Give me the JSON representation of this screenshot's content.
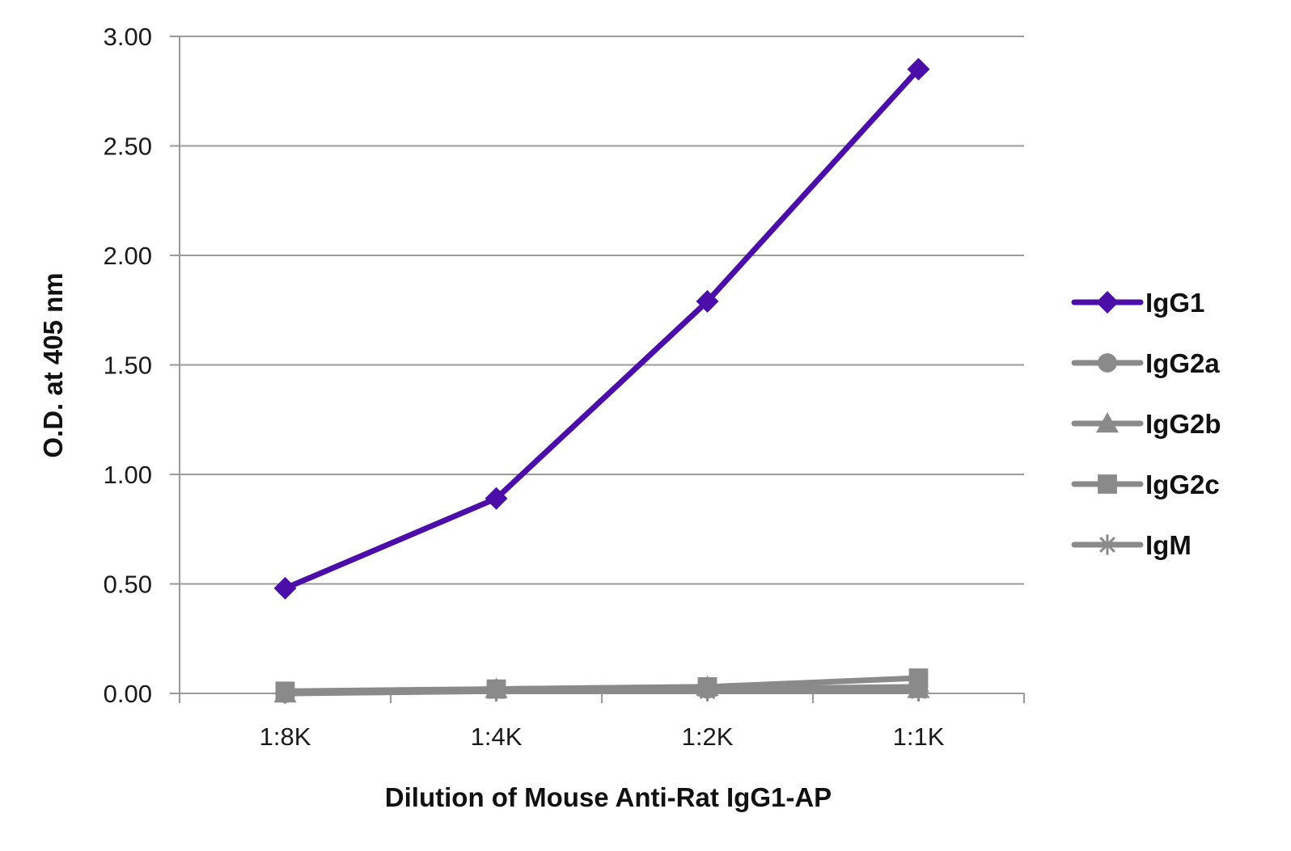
{
  "chart_data": {
    "type": "line",
    "title": "",
    "xlabel": "Dilution of Mouse Anti-Rat IgG1-AP",
    "ylabel": "O.D. at 405 nm",
    "categories": [
      "1:8K",
      "1:4K",
      "1:2K",
      "1:1K"
    ],
    "ylim": [
      0,
      3
    ],
    "yticks": [
      0,
      0.5,
      1,
      1.5,
      2,
      2.5,
      3
    ],
    "ytick_labels": [
      "0.00",
      "0.50",
      "1.00",
      "1.50",
      "2.00",
      "2.50",
      "3.00"
    ],
    "grid": "horizontal",
    "legend_position": "right",
    "series": [
      {
        "name": "IgG1",
        "values": [
          0.48,
          0.89,
          1.79,
          2.85
        ],
        "color": "#4b0ea8",
        "marker": "diamond"
      },
      {
        "name": "IgG2a",
        "values": [
          0.0,
          0.02,
          0.02,
          0.03
        ],
        "color": "#8a8a8a",
        "marker": "circle"
      },
      {
        "name": "IgG2b",
        "values": [
          0.0,
          0.02,
          0.03,
          0.02
        ],
        "color": "#8a8a8a",
        "marker": "triangle"
      },
      {
        "name": "IgG2c",
        "values": [
          0.01,
          0.02,
          0.03,
          0.07
        ],
        "color": "#8a8a8a",
        "marker": "square"
      },
      {
        "name": "IgM",
        "values": [
          0.0,
          0.01,
          0.01,
          0.01
        ],
        "color": "#8a8a8a",
        "marker": "star"
      }
    ]
  }
}
